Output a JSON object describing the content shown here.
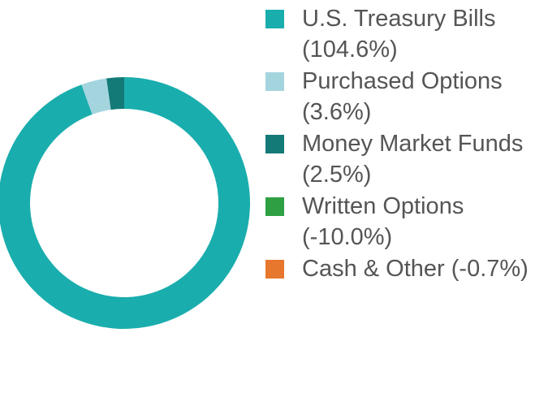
{
  "chart_data": {
    "type": "donut",
    "categories": [
      "U.S. Treasury Bills",
      "Purchased Options",
      "Money Market Funds",
      "Written Options",
      "Cash & Other"
    ],
    "values": [
      104.6,
      3.6,
      2.5,
      -10.0,
      -0.7
    ],
    "value_labels": [
      "(104.6%)",
      "(3.6%)",
      "(2.5%)",
      "(-10.0%)",
      "(-0.7%)"
    ],
    "colors": [
      "#1aadad",
      "#a4d5df",
      "#137a77",
      "#2ea043",
      "#e8772e"
    ]
  }
}
